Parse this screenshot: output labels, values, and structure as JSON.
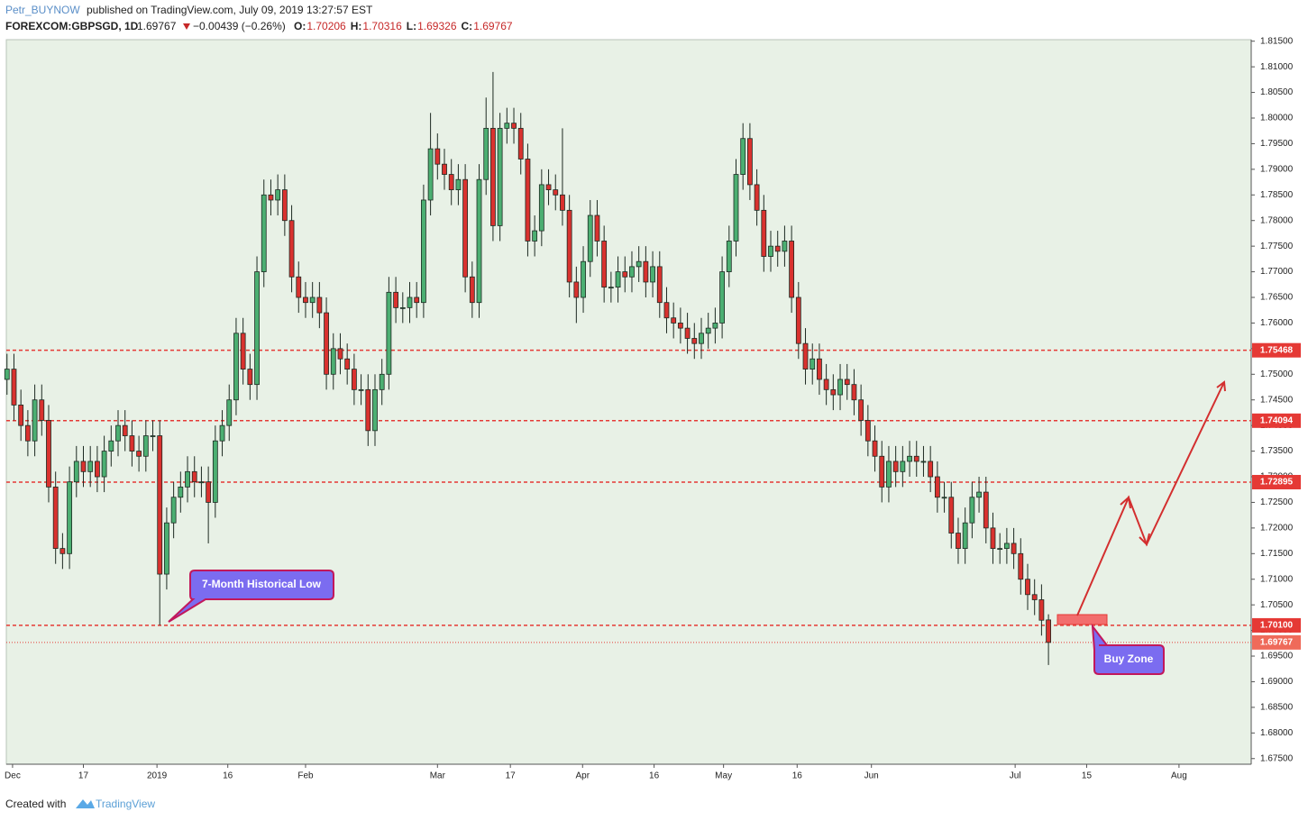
{
  "chart_data": {
    "type": "candlestick",
    "header": {
      "author": "Petr_BUYNOW",
      "published": "published on TradingView.com, July 09, 2019 13:27:57 EST",
      "symbol": "FOREXCOM:GBPSGD, 1D",
      "last": "1.69767",
      "change": "−0.00439 (−0.26%)",
      "ohlc_labels": [
        "O:",
        "H:",
        "L:",
        "C:"
      ],
      "ohlc_values": [
        "1.70206",
        "1.70316",
        "1.69326",
        "1.69767"
      ]
    },
    "up_color": "#4caf72",
    "down_color": "#d9322f",
    "wick_color": "#1d2a22",
    "level_color": "#e53935",
    "open": [
      1.749,
      1.751,
      1.744,
      1.74,
      1.737,
      1.745,
      1.741,
      1.728,
      1.716,
      1.715,
      1.729,
      1.733,
      1.731,
      1.733,
      1.73,
      1.735,
      1.737,
      1.74,
      1.738,
      1.735,
      1.734,
      1.738,
      1.738,
      1.711,
      1.721,
      1.726,
      1.728,
      1.731,
      1.729,
      1.729,
      1.725,
      1.737,
      1.74,
      1.745,
      1.758,
      1.751,
      1.748,
      1.77,
      1.785,
      1.784,
      1.786,
      1.78,
      1.769,
      1.765,
      1.764,
      1.765,
      1.762,
      1.75,
      1.755,
      1.753,
      1.751,
      1.747,
      1.747,
      1.739,
      1.747,
      1.75,
      1.766,
      1.763,
      1.763,
      1.765,
      1.764,
      1.784,
      1.794,
      1.791,
      1.789,
      1.786,
      1.788,
      1.769,
      1.764,
      1.788,
      1.798,
      1.779,
      1.798,
      1.799,
      1.798,
      1.792,
      1.776,
      1.778,
      1.787,
      1.786,
      1.785,
      1.782,
      1.768,
      1.765,
      1.772,
      1.781,
      1.776,
      1.767,
      1.767,
      1.77,
      1.769,
      1.771,
      1.772,
      1.768,
      1.771,
      1.764,
      1.761,
      1.76,
      1.759,
      1.757,
      1.756,
      1.758,
      1.759,
      1.76,
      1.77,
      1.776,
      1.789,
      1.796,
      1.787,
      1.782,
      1.773,
      1.775,
      1.774,
      1.776,
      1.765,
      1.756,
      1.751,
      1.753,
      1.749,
      1.747,
      1.746,
      1.749,
      1.748,
      1.745,
      1.741,
      1.737,
      1.734,
      1.728,
      1.733,
      1.731,
      1.733,
      1.734,
      1.733,
      1.733,
      1.73,
      1.726,
      1.726,
      1.719,
      1.716,
      1.721,
      1.726,
      1.727,
      1.72,
      1.716,
      1.716,
      1.717,
      1.715,
      1.71,
      1.707,
      1.706,
      1.70206
    ],
    "high": [
      1.754,
      1.754,
      1.747,
      1.743,
      1.748,
      1.748,
      1.744,
      1.731,
      1.719,
      1.732,
      1.736,
      1.736,
      1.736,
      1.736,
      1.738,
      1.74,
      1.743,
      1.743,
      1.741,
      1.738,
      1.741,
      1.741,
      1.741,
      1.724,
      1.729,
      1.731,
      1.734,
      1.734,
      1.732,
      1.732,
      1.74,
      1.743,
      1.748,
      1.761,
      1.761,
      1.754,
      1.773,
      1.788,
      1.788,
      1.789,
      1.789,
      1.783,
      1.772,
      1.768,
      1.768,
      1.768,
      1.765,
      1.758,
      1.758,
      1.756,
      1.754,
      1.75,
      1.75,
      1.75,
      1.753,
      1.769,
      1.769,
      1.766,
      1.768,
      1.768,
      1.787,
      1.801,
      1.797,
      1.794,
      1.792,
      1.791,
      1.791,
      1.772,
      1.791,
      1.804,
      1.809,
      1.801,
      1.802,
      1.802,
      1.801,
      1.795,
      1.781,
      1.79,
      1.79,
      1.789,
      1.798,
      1.785,
      1.771,
      1.775,
      1.784,
      1.784,
      1.779,
      1.77,
      1.773,
      1.773,
      1.774,
      1.775,
      1.775,
      1.774,
      1.774,
      1.767,
      1.764,
      1.763,
      1.762,
      1.76,
      1.761,
      1.762,
      1.763,
      1.773,
      1.779,
      1.792,
      1.799,
      1.799,
      1.79,
      1.785,
      1.778,
      1.778,
      1.779,
      1.779,
      1.768,
      1.759,
      1.756,
      1.756,
      1.752,
      1.75,
      1.752,
      1.752,
      1.751,
      1.748,
      1.744,
      1.74,
      1.737,
      1.736,
      1.736,
      1.736,
      1.737,
      1.737,
      1.736,
      1.736,
      1.733,
      1.729,
      1.729,
      1.722,
      1.724,
      1.729,
      1.73,
      1.73,
      1.723,
      1.719,
      1.72,
      1.72,
      1.718,
      1.713,
      1.71,
      1.709,
      1.70316
    ],
    "low": [
      1.746,
      1.741,
      1.737,
      1.734,
      1.734,
      1.738,
      1.725,
      1.713,
      1.712,
      1.712,
      1.726,
      1.728,
      1.728,
      1.727,
      1.727,
      1.732,
      1.734,
      1.735,
      1.732,
      1.731,
      1.731,
      1.735,
      1.701,
      1.708,
      1.718,
      1.723,
      1.725,
      1.726,
      1.726,
      1.717,
      1.722,
      1.734,
      1.737,
      1.742,
      1.748,
      1.745,
      1.745,
      1.767,
      1.781,
      1.781,
      1.777,
      1.766,
      1.762,
      1.761,
      1.761,
      1.759,
      1.747,
      1.747,
      1.75,
      1.748,
      1.744,
      1.744,
      1.736,
      1.736,
      1.744,
      1.747,
      1.76,
      1.76,
      1.76,
      1.761,
      1.761,
      1.781,
      1.788,
      1.786,
      1.783,
      1.783,
      1.766,
      1.761,
      1.761,
      1.785,
      1.776,
      1.776,
      1.795,
      1.795,
      1.789,
      1.773,
      1.773,
      1.775,
      1.783,
      1.782,
      1.779,
      1.765,
      1.76,
      1.762,
      1.769,
      1.773,
      1.764,
      1.764,
      1.764,
      1.766,
      1.766,
      1.768,
      1.765,
      1.765,
      1.761,
      1.758,
      1.757,
      1.756,
      1.754,
      1.753,
      1.753,
      1.755,
      1.756,
      1.757,
      1.767,
      1.773,
      1.786,
      1.784,
      1.779,
      1.77,
      1.77,
      1.771,
      1.771,
      1.762,
      1.753,
      1.748,
      1.748,
      1.746,
      1.744,
      1.743,
      1.743,
      1.745,
      1.742,
      1.738,
      1.734,
      1.731,
      1.725,
      1.725,
      1.728,
      1.728,
      1.73,
      1.73,
      1.73,
      1.727,
      1.723,
      1.723,
      1.716,
      1.713,
      1.713,
      1.718,
      1.723,
      1.717,
      1.713,
      1.713,
      1.713,
      1.712,
      1.707,
      1.704,
      1.703,
      1.699,
      1.69326
    ],
    "close": [
      1.751,
      1.744,
      1.74,
      1.737,
      1.745,
      1.741,
      1.728,
      1.716,
      1.715,
      1.729,
      1.733,
      1.731,
      1.733,
      1.73,
      1.735,
      1.737,
      1.74,
      1.738,
      1.735,
      1.734,
      1.738,
      1.738,
      1.711,
      1.721,
      1.726,
      1.728,
      1.731,
      1.729,
      1.729,
      1.725,
      1.737,
      1.74,
      1.745,
      1.758,
      1.751,
      1.748,
      1.77,
      1.785,
      1.784,
      1.786,
      1.78,
      1.769,
      1.765,
      1.764,
      1.765,
      1.762,
      1.75,
      1.755,
      1.753,
      1.751,
      1.747,
      1.747,
      1.739,
      1.747,
      1.75,
      1.766,
      1.763,
      1.763,
      1.765,
      1.764,
      1.784,
      1.794,
      1.791,
      1.789,
      1.786,
      1.788,
      1.769,
      1.764,
      1.788,
      1.798,
      1.779,
      1.798,
      1.799,
      1.798,
      1.792,
      1.776,
      1.778,
      1.787,
      1.786,
      1.785,
      1.782,
      1.768,
      1.765,
      1.772,
      1.781,
      1.776,
      1.767,
      1.767,
      1.77,
      1.769,
      1.771,
      1.772,
      1.768,
      1.771,
      1.764,
      1.761,
      1.76,
      1.759,
      1.757,
      1.756,
      1.758,
      1.759,
      1.76,
      1.77,
      1.776,
      1.789,
      1.796,
      1.787,
      1.782,
      1.773,
      1.775,
      1.774,
      1.776,
      1.765,
      1.756,
      1.751,
      1.753,
      1.749,
      1.747,
      1.746,
      1.749,
      1.748,
      1.745,
      1.741,
      1.737,
      1.734,
      1.728,
      1.733,
      1.731,
      1.733,
      1.734,
      1.733,
      1.733,
      1.73,
      1.726,
      1.726,
      1.719,
      1.716,
      1.721,
      1.726,
      1.727,
      1.72,
      1.716,
      1.716,
      1.717,
      1.715,
      1.71,
      1.707,
      1.706,
      1.702,
      1.69767
    ],
    "levels": [
      1.75468,
      1.74094,
      1.72895,
      {
        "value": 1.701,
        "label": "1.70100"
      }
    ],
    "last_price": 1.69767,
    "annotations": [
      "7-Month Historical Low",
      "Buy Zone"
    ],
    "xlim": [
      -0.1,
      179.2
    ],
    "xticks": [
      {
        "value": 0.8,
        "label": "Dec"
      },
      {
        "value": 11,
        "label": "17"
      },
      {
        "value": 21.6,
        "label": "2019"
      },
      {
        "value": 31.8,
        "label": "16"
      },
      {
        "value": 43,
        "label": "Feb"
      },
      {
        "value": 62,
        "label": "Mar"
      },
      {
        "value": 72.5,
        "label": "17"
      },
      {
        "value": 82.9,
        "label": "Apr"
      },
      {
        "value": 93.2,
        "label": "16"
      },
      {
        "value": 103.2,
        "label": "May"
      },
      {
        "value": 113.8,
        "label": "16"
      },
      {
        "value": 124.5,
        "label": "Jun"
      },
      {
        "value": 145.2,
        "label": "Jul"
      },
      {
        "value": 155.5,
        "label": "15"
      },
      {
        "value": 168.8,
        "label": "Aug"
      }
    ],
    "ylim": [
      1.6739,
      1.8153
    ],
    "yticks": [
      {
        "value": 1.675,
        "label": "1.67500"
      },
      {
        "value": 1.68,
        "label": "1.68000"
      },
      {
        "value": 1.685,
        "label": "1.68500"
      },
      {
        "value": 1.69,
        "label": "1.69000"
      },
      {
        "value": 1.695,
        "label": "1.69500"
      },
      {
        "value": 1.7,
        "label": "1.70000"
      },
      {
        "value": 1.705,
        "label": "1.70500"
      },
      {
        "value": 1.71,
        "label": "1.71000"
      },
      {
        "value": 1.715,
        "label": "1.71500"
      },
      {
        "value": 1.72,
        "label": "1.72000"
      },
      {
        "value": 1.725,
        "label": "1.72500"
      },
      {
        "value": 1.73,
        "label": "1.73000"
      },
      {
        "value": 1.735,
        "label": "1.73500"
      },
      {
        "value": 1.74,
        "label": "1.74000"
      },
      {
        "value": 1.745,
        "label": "1.74500"
      },
      {
        "value": 1.75,
        "label": "1.75000"
      },
      {
        "value": 1.755,
        "label": "1.75500"
      },
      {
        "value": 1.76,
        "label": "1.76000"
      },
      {
        "value": 1.765,
        "label": "1.76500"
      },
      {
        "value": 1.77,
        "label": "1.77000"
      },
      {
        "value": 1.775,
        "label": "1.77500"
      },
      {
        "value": 1.78,
        "label": "1.78000"
      },
      {
        "value": 1.785,
        "label": "1.78500"
      },
      {
        "value": 1.79,
        "label": "1.79000"
      },
      {
        "value": 1.795,
        "label": "1.79500"
      },
      {
        "value": 1.8,
        "label": "1.80000"
      },
      {
        "value": 1.805,
        "label": "1.80500"
      },
      {
        "value": 1.81,
        "label": "1.81000"
      },
      {
        "value": 1.815,
        "label": "1.81500"
      }
    ],
    "footer": {
      "created": "Created with",
      "brand": "TradingView"
    }
  }
}
